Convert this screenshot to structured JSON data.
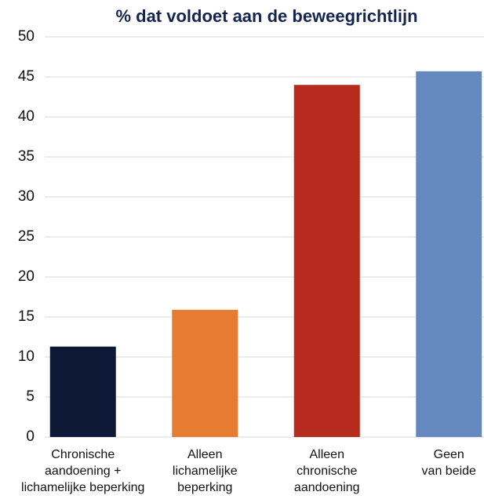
{
  "chart_data": {
    "type": "bar",
    "title": "% dat voldoet aan de beweegrichtlijn",
    "categories": [
      [
        "Chronische",
        "aandoening +",
        "lichamelijke beperking"
      ],
      [
        "Alleen",
        "lichamelijke",
        "beperking"
      ],
      [
        "Alleen",
        "chronische",
        "aandoening"
      ],
      [
        "Geen",
        "van beide"
      ]
    ],
    "values": [
      11.3,
      15.9,
      44.0,
      45.7
    ],
    "colors": [
      "#0e1938",
      "#e77b31",
      "#b72b1f",
      "#6588bf"
    ],
    "ylim": [
      0,
      50
    ],
    "yticks": [
      0,
      5,
      10,
      15,
      20,
      25,
      30,
      35,
      40,
      45,
      50
    ],
    "grid": true
  }
}
